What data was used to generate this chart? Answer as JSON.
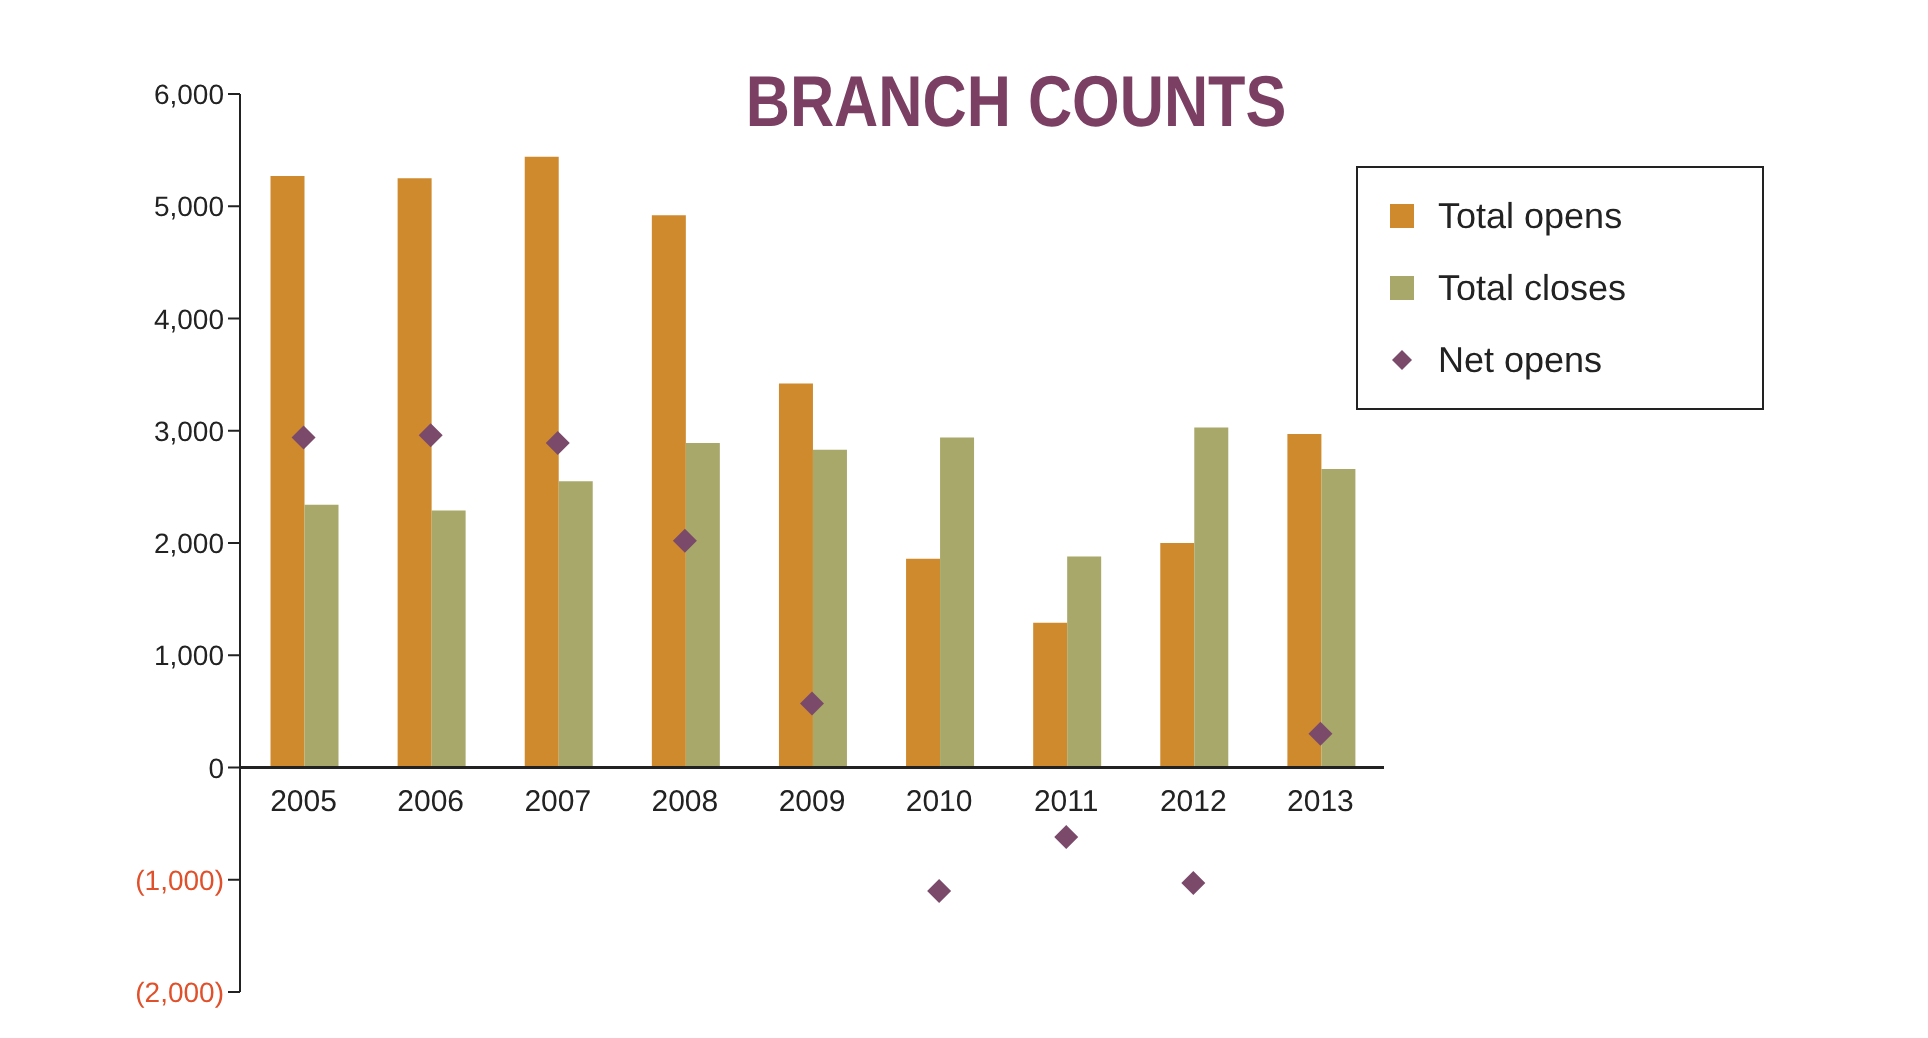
{
  "chart_data": {
    "type": "bar",
    "title": "BRANCH COUNTS",
    "categories": [
      "2005",
      "2006",
      "2007",
      "2008",
      "2009",
      "2010",
      "2011",
      "2012",
      "2013"
    ],
    "series": [
      {
        "name": "Total opens",
        "color": "#d08a2e",
        "values": [
          5270,
          5250,
          5440,
          4920,
          3420,
          1860,
          1290,
          2000,
          2970
        ]
      },
      {
        "name": "Total closes",
        "color": "#a8a86a",
        "values": [
          2340,
          2290,
          2550,
          2890,
          2830,
          2940,
          1880,
          3030,
          2660
        ]
      },
      {
        "name": "Net opens",
        "type": "scatter",
        "color": "#7b4a6b",
        "marker": "diamond",
        "values": [
          2940,
          2960,
          2890,
          2020,
          570,
          -1100,
          -620,
          -1030,
          300
        ]
      }
    ],
    "ylim": [
      -2000,
      6000
    ],
    "yticks": [
      {
        "value": -2000,
        "label": "(2,000)"
      },
      {
        "value": -1000,
        "label": "(1,000)"
      },
      {
        "value": 0,
        "label": "0"
      },
      {
        "value": 1000,
        "label": "1,000"
      },
      {
        "value": 2000,
        "label": "2,000"
      },
      {
        "value": 3000,
        "label": "3,000"
      },
      {
        "value": 4000,
        "label": "4,000"
      },
      {
        "value": 5000,
        "label": "5,000"
      },
      {
        "value": 6000,
        "label": "6,000"
      }
    ],
    "grid": false,
    "legend": "top right"
  }
}
